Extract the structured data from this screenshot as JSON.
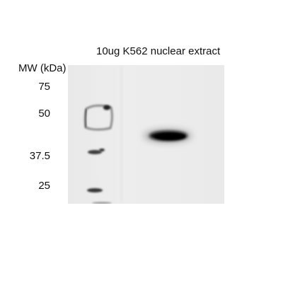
{
  "figure": {
    "sample_label": "10ug K562 nuclear extract",
    "mw_header": "MW (kDa)",
    "mw_markers": [
      "75",
      "50",
      "37.5",
      "25"
    ]
  }
}
